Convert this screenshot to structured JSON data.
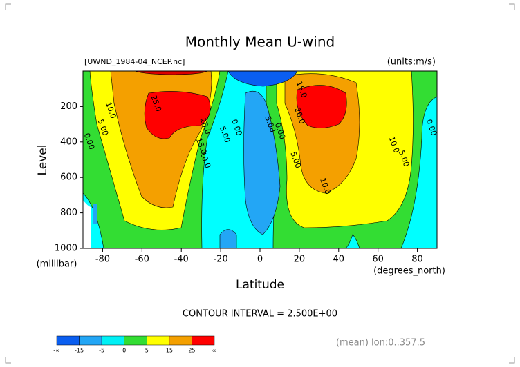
{
  "chart_data": {
    "type": "contour",
    "title": "Monthly Mean U-wind",
    "subtitle": "[UWND_1984-04_NCEP.nc]",
    "units_label": "(units:m/s)",
    "x_label": "Latitude",
    "x_units": "(degrees_north)",
    "y_label": "Level",
    "y_units": "(millibar)",
    "xlim": [
      -90,
      90
    ],
    "xticks": [
      -80,
      -60,
      -40,
      -20,
      0,
      20,
      40,
      60,
      80
    ],
    "ylim": [
      1000,
      0
    ],
    "yticks": [
      200,
      400,
      600,
      800,
      1000
    ],
    "contour_labels": [
      {
        "label": "10.0",
        "x": -76,
        "y": 222
      },
      {
        "label": "5.00",
        "x": -80,
        "y": 319
      },
      {
        "label": "0.00",
        "x": -87,
        "y": 397
      },
      {
        "label": "25.0",
        "x": -53,
        "y": 183
      },
      {
        "label": "20.0",
        "x": -28,
        "y": 311
      },
      {
        "label": "15.0",
        "x": -30,
        "y": 424
      },
      {
        "label": "10.0",
        "x": -28,
        "y": 502
      },
      {
        "label": "5.00",
        "x": -18,
        "y": 358
      },
      {
        "label": "0.00",
        "x": -12,
        "y": 319
      },
      {
        "label": "5.00",
        "x": 5,
        "y": 300
      },
      {
        "label": "0.00",
        "x": 10,
        "y": 339
      },
      {
        "label": "15.0",
        "x": 21,
        "y": 105
      },
      {
        "label": "20.0",
        "x": 20,
        "y": 253
      },
      {
        "label": "5.00",
        "x": 18,
        "y": 502
      },
      {
        "label": "10.0",
        "x": 33,
        "y": 650
      },
      {
        "label": "10.0",
        "x": 68,
        "y": 416
      },
      {
        "label": "5.00",
        "x": 73,
        "y": 494
      },
      {
        "label": "0.00",
        "x": 87,
        "y": 319
      }
    ],
    "footer": "CONTOUR INTERVAL = 2.500E+00",
    "note": "(mean) lon:0..357.5",
    "colorbar": {
      "colors": [
        "#0a5ef0",
        "#23a6f5",
        "#00f0f5",
        "#33dd33",
        "#ffff00",
        "#f4a000",
        "#ff0000"
      ],
      "ticks": [
        {
          "value": null,
          "label": "-∞"
        },
        -15,
        -5,
        0,
        5,
        15,
        25,
        {
          "value": null,
          "label": "∞"
        }
      ]
    }
  }
}
